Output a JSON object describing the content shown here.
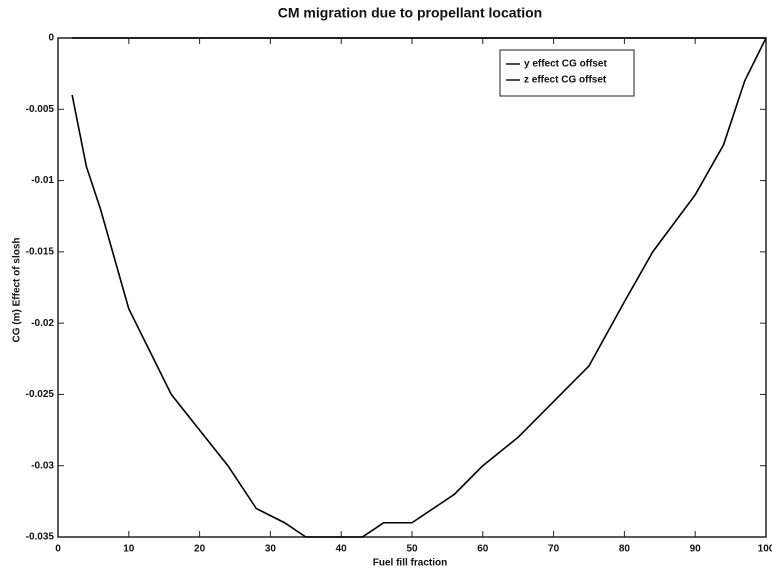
{
  "chart_data": {
    "type": "line",
    "title": "CM migration due to propellant location",
    "x_label": "Fuel fill fraction",
    "y_label": "CG (m) Effect of slosh",
    "x": [
      2,
      4,
      6,
      8,
      10,
      13,
      16,
      20,
      24,
      28,
      32,
      35,
      40,
      43,
      46,
      50,
      53,
      56,
      60,
      65,
      70,
      75,
      80,
      84,
      90,
      94,
      97,
      100
    ],
    "series": [
      {
        "name": "y effect CG offset",
        "color": "#000000",
        "values": [
          0,
          0,
          0,
          0,
          0,
          0,
          0,
          0,
          0,
          0,
          0,
          0,
          0,
          0,
          0,
          0,
          0,
          0,
          0,
          0,
          0,
          0,
          0,
          0,
          0,
          0,
          0,
          0
        ]
      },
      {
        "name": "z effect CG offset",
        "color": "#000000",
        "values": [
          -0.004,
          -0.009,
          -0.012,
          -0.0155,
          -0.019,
          -0.022,
          -0.025,
          -0.0275,
          -0.03,
          -0.033,
          -0.034,
          -0.035,
          -0.035,
          -0.035,
          -0.034,
          -0.034,
          -0.033,
          -0.032,
          -0.03,
          -0.028,
          -0.0255,
          -0.023,
          -0.0185,
          -0.015,
          -0.011,
          -0.0075,
          -0.003,
          0
        ]
      }
    ],
    "xlim": [
      0,
      100
    ],
    "ylim": [
      -0.035,
      0
    ],
    "xticks": [
      0,
      10,
      20,
      30,
      40,
      50,
      60,
      70,
      80,
      90,
      100
    ],
    "yticks": [
      0,
      -0.005,
      -0.01,
      -0.015,
      -0.02,
      -0.025,
      -0.03,
      -0.035
    ],
    "legend": "upper right",
    "grid": false
  }
}
